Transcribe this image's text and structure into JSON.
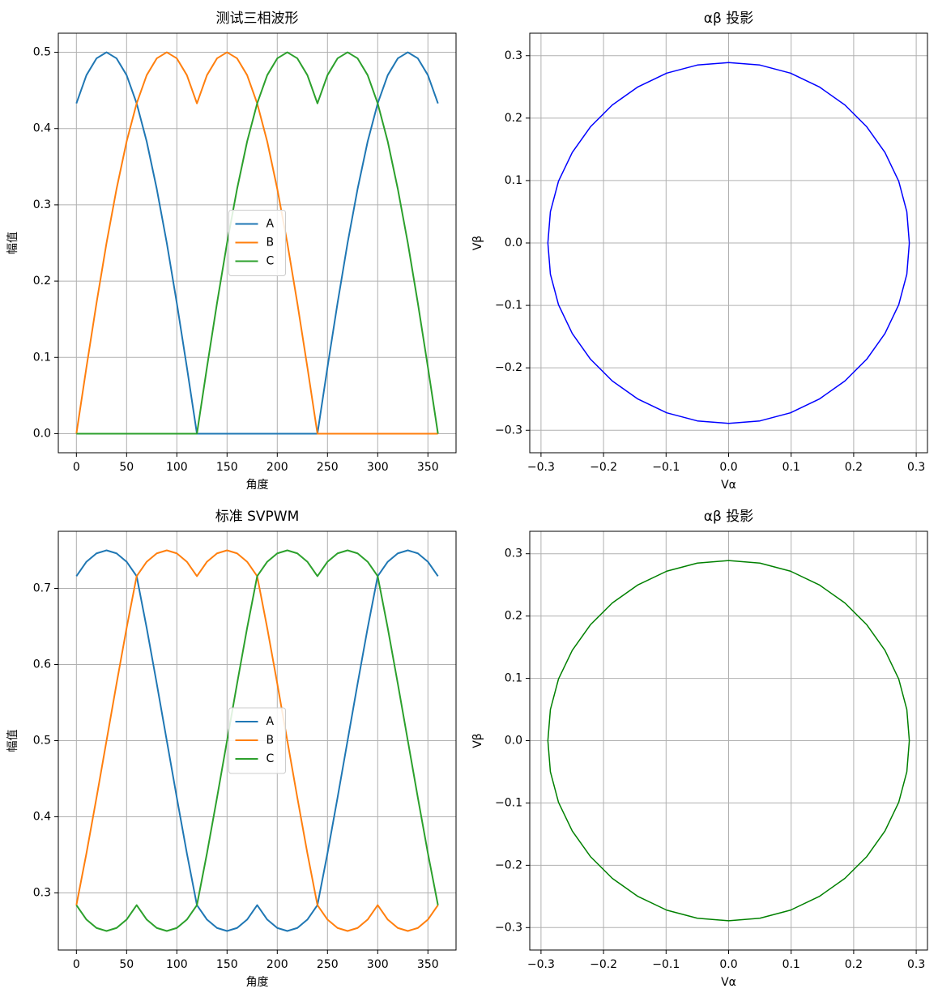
{
  "chart_data": [
    {
      "type": "line",
      "title": "测试三相波形",
      "xlabel": "角度",
      "ylabel": "幅值",
      "x": [
        0,
        10,
        20,
        30,
        40,
        50,
        60,
        70,
        80,
        90,
        100,
        110,
        120,
        130,
        140,
        150,
        160,
        170,
        180,
        190,
        200,
        210,
        220,
        230,
        240,
        250,
        260,
        270,
        280,
        290,
        300,
        310,
        320,
        330,
        340,
        350,
        360
      ],
      "series": [
        {
          "name": "A",
          "color": "#1f77b4",
          "values": [
            0.433,
            0.47,
            0.492,
            0.5,
            0.492,
            0.47,
            0.433,
            0.383,
            0.321,
            0.25,
            0.171,
            0.087,
            0,
            0,
            0,
            0,
            0,
            0,
            0,
            0,
            0,
            0,
            0,
            0,
            0,
            0.087,
            0.171,
            0.25,
            0.321,
            0.383,
            0.433,
            0.47,
            0.492,
            0.5,
            0.492,
            0.47,
            0.433
          ]
        },
        {
          "name": "B",
          "color": "#ff7f0e",
          "values": [
            0,
            0.087,
            0.171,
            0.25,
            0.321,
            0.383,
            0.433,
            0.47,
            0.492,
            0.5,
            0.492,
            0.47,
            0.433,
            0.47,
            0.492,
            0.5,
            0.492,
            0.47,
            0.433,
            0.383,
            0.321,
            0.25,
            0.171,
            0.087,
            0,
            0,
            0,
            0,
            0,
            0,
            0,
            0,
            0,
            0,
            0,
            0,
            0
          ]
        },
        {
          "name": "C",
          "color": "#2ca02c",
          "values": [
            0,
            0,
            0,
            0,
            0,
            0,
            0,
            0,
            0,
            0,
            0,
            0,
            0,
            0.087,
            0.171,
            0.25,
            0.321,
            0.383,
            0.433,
            0.47,
            0.492,
            0.5,
            0.492,
            0.47,
            0.433,
            0.47,
            0.492,
            0.5,
            0.492,
            0.47,
            0.433,
            0.383,
            0.321,
            0.25,
            0.171,
            0.087,
            0
          ]
        }
      ],
      "xlim": [
        -18,
        378
      ],
      "xticks": [
        0,
        50,
        100,
        150,
        200,
        250,
        300,
        350
      ],
      "ylim": [
        -0.025,
        0.525
      ],
      "yticks": [
        {
          "value": 0,
          "label": "0.0"
        },
        0.1,
        0.2,
        0.3,
        0.4,
        0.5
      ],
      "grid": true,
      "legend": "center"
    },
    {
      "type": "line",
      "title": "αβ 投影",
      "xlabel": "Vα",
      "ylabel": "Vβ",
      "color": "#0000ff",
      "x": [
        0.289,
        0.285,
        0.272,
        0.25,
        0.221,
        0.186,
        0.145,
        0.099,
        0.05,
        0,
        -0.05,
        -0.099,
        -0.145,
        -0.186,
        -0.221,
        -0.25,
        -0.272,
        -0.285,
        -0.289,
        -0.285,
        -0.272,
        -0.25,
        -0.221,
        -0.186,
        -0.145,
        -0.099,
        -0.05,
        0,
        0.05,
        0.099,
        0.145,
        0.186,
        0.221,
        0.25,
        0.272,
        0.285,
        0.289
      ],
      "values": [
        0,
        0.05,
        0.099,
        0.145,
        0.186,
        0.221,
        0.25,
        0.272,
        0.285,
        0.289,
        0.285,
        0.272,
        0.25,
        0.221,
        0.186,
        0.145,
        0.099,
        0.05,
        0,
        -0.05,
        -0.099,
        -0.145,
        -0.186,
        -0.221,
        -0.25,
        -0.272,
        -0.285,
        -0.289,
        -0.285,
        -0.272,
        -0.25,
        -0.221,
        -0.186,
        -0.145,
        -0.099,
        -0.05,
        0
      ],
      "xlim": [
        -0.318,
        0.318
      ],
      "xticks": [
        {
          "value": -0.3,
          "label": "−0.3"
        },
        {
          "value": -0.2,
          "label": "−0.2"
        },
        {
          "value": -0.1,
          "label": "−0.1"
        },
        {
          "value": 0,
          "label": "0.0"
        },
        0.1,
        0.2,
        0.3
      ],
      "ylim": [
        -0.336,
        0.336
      ],
      "yticks": [
        {
          "value": -0.3,
          "label": "−0.3"
        },
        {
          "value": -0.2,
          "label": "−0.2"
        },
        {
          "value": -0.1,
          "label": "−0.1"
        },
        {
          "value": 0,
          "label": "0.0"
        },
        0.1,
        0.2,
        0.3
      ],
      "grid": true
    },
    {
      "type": "line",
      "title": "标准 SVPWM",
      "xlabel": "角度",
      "ylabel": "幅值",
      "x": [
        0,
        10,
        20,
        30,
        40,
        50,
        60,
        70,
        80,
        90,
        100,
        110,
        120,
        130,
        140,
        150,
        160,
        170,
        180,
        190,
        200,
        210,
        220,
        230,
        240,
        250,
        260,
        270,
        280,
        290,
        300,
        310,
        320,
        330,
        340,
        350,
        360
      ],
      "series": [
        {
          "name": "A",
          "color": "#1f77b4",
          "values": [
            0.716,
            0.735,
            0.746,
            0.75,
            0.746,
            0.735,
            0.716,
            0.648,
            0.575,
            0.5,
            0.425,
            0.352,
            0.284,
            0.265,
            0.254,
            0.25,
            0.254,
            0.265,
            0.284,
            0.265,
            0.254,
            0.25,
            0.254,
            0.265,
            0.284,
            0.352,
            0.425,
            0.5,
            0.575,
            0.648,
            0.716,
            0.735,
            0.746,
            0.75,
            0.746,
            0.735,
            0.716
          ]
        },
        {
          "name": "B",
          "color": "#ff7f0e",
          "values": [
            0.284,
            0.352,
            0.425,
            0.5,
            0.575,
            0.648,
            0.716,
            0.735,
            0.746,
            0.75,
            0.746,
            0.735,
            0.716,
            0.735,
            0.746,
            0.75,
            0.746,
            0.735,
            0.716,
            0.648,
            0.575,
            0.5,
            0.425,
            0.352,
            0.284,
            0.265,
            0.254,
            0.25,
            0.254,
            0.265,
            0.284,
            0.265,
            0.254,
            0.25,
            0.254,
            0.265,
            0.284
          ]
        },
        {
          "name": "C",
          "color": "#2ca02c",
          "values": [
            0.284,
            0.265,
            0.254,
            0.25,
            0.254,
            0.265,
            0.284,
            0.265,
            0.254,
            0.25,
            0.254,
            0.265,
            0.284,
            0.352,
            0.425,
            0.5,
            0.575,
            0.648,
            0.716,
            0.735,
            0.746,
            0.75,
            0.746,
            0.735,
            0.716,
            0.735,
            0.746,
            0.75,
            0.746,
            0.735,
            0.716,
            0.648,
            0.575,
            0.5,
            0.425,
            0.352,
            0.284
          ]
        }
      ],
      "xlim": [
        -18,
        378
      ],
      "xticks": [
        0,
        50,
        100,
        150,
        200,
        250,
        300,
        350
      ],
      "ylim": [
        0.225,
        0.775
      ],
      "yticks": [
        0.3,
        0.4,
        0.5,
        0.6,
        0.7
      ],
      "grid": true,
      "legend": "center"
    },
    {
      "type": "line",
      "title": "αβ 投影",
      "xlabel": "Vα",
      "ylabel": "Vβ",
      "color": "#008000",
      "x": [
        0.289,
        0.285,
        0.272,
        0.25,
        0.221,
        0.186,
        0.145,
        0.099,
        0.05,
        0,
        -0.05,
        -0.099,
        -0.145,
        -0.186,
        -0.221,
        -0.25,
        -0.272,
        -0.285,
        -0.289,
        -0.285,
        -0.272,
        -0.25,
        -0.221,
        -0.186,
        -0.145,
        -0.099,
        -0.05,
        0,
        0.05,
        0.099,
        0.145,
        0.186,
        0.221,
        0.25,
        0.272,
        0.285,
        0.289
      ],
      "values": [
        0,
        0.05,
        0.099,
        0.145,
        0.186,
        0.221,
        0.25,
        0.272,
        0.285,
        0.289,
        0.285,
        0.272,
        0.25,
        0.221,
        0.186,
        0.145,
        0.099,
        0.05,
        0,
        -0.05,
        -0.099,
        -0.145,
        -0.186,
        -0.221,
        -0.25,
        -0.272,
        -0.285,
        -0.289,
        -0.285,
        -0.272,
        -0.25,
        -0.221,
        -0.186,
        -0.145,
        -0.099,
        -0.05,
        0
      ],
      "xlim": [
        -0.318,
        0.318
      ],
      "xticks": [
        {
          "value": -0.3,
          "label": "−0.3"
        },
        {
          "value": -0.2,
          "label": "−0.2"
        },
        {
          "value": -0.1,
          "label": "−0.1"
        },
        {
          "value": 0,
          "label": "0.0"
        },
        0.1,
        0.2,
        0.3
      ],
      "ylim": [
        -0.336,
        0.336
      ],
      "yticks": [
        {
          "value": -0.3,
          "label": "−0.3"
        },
        {
          "value": -0.2,
          "label": "−0.2"
        },
        {
          "value": -0.1,
          "label": "−0.1"
        },
        {
          "value": 0,
          "label": "0.0"
        },
        0.1,
        0.2,
        0.3
      ],
      "grid": true
    }
  ]
}
